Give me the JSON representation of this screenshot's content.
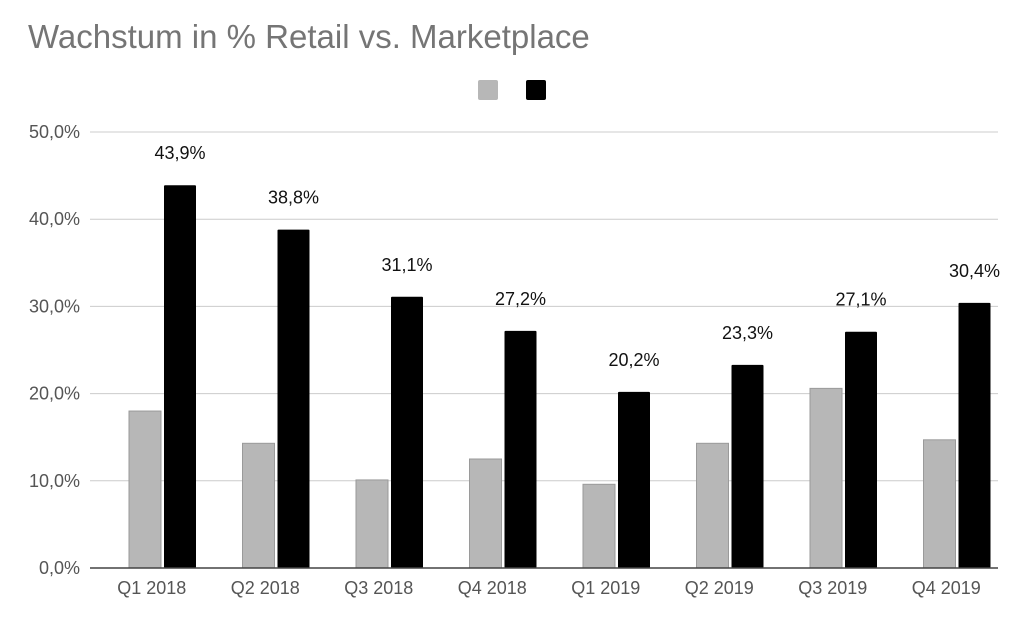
{
  "chart_data": {
    "type": "bar",
    "title": "Wachstum in % Retail vs. Marketplace",
    "xlabel": "",
    "ylabel": "",
    "categories": [
      "Q1 2018",
      "Q2 2018",
      "Q3 2018",
      "Q4 2018",
      "Q1 2019",
      "Q2 2019",
      "Q3 2019",
      "Q4 2019"
    ],
    "series": [
      {
        "color": "#b7b7b7",
        "values": [
          18.0,
          14.3,
          10.1,
          12.5,
          9.6,
          14.3,
          20.6,
          14.7
        ]
      },
      {
        "color": "#000000",
        "values": [
          43.9,
          38.8,
          31.1,
          27.2,
          20.2,
          23.3,
          27.1,
          30.4
        ],
        "data_labels": [
          "43,9%",
          "38,8%",
          "31,1%",
          "27,2%",
          "20,2%",
          "23,3%",
          "27,1%",
          "30,4%"
        ]
      }
    ],
    "ylim": [
      0,
      50
    ],
    "yticks": [
      0,
      10,
      20,
      30,
      40,
      50
    ],
    "ytick_labels": [
      "0,0%",
      "10,0%",
      "20,0%",
      "30,0%",
      "40,0%",
      "50,0%"
    ],
    "grid": true,
    "legend": {
      "position": "top-center",
      "show_names": false
    }
  }
}
